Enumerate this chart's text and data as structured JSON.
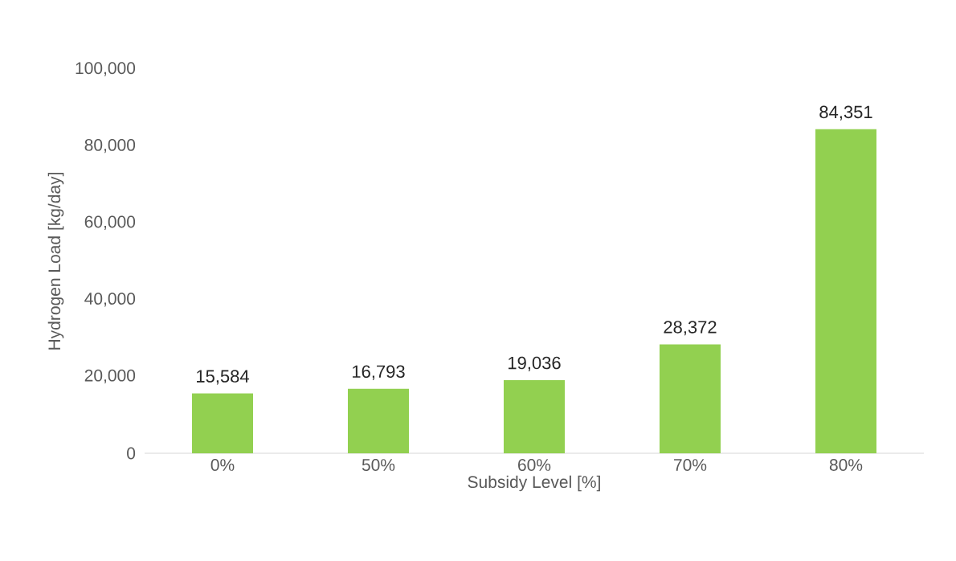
{
  "chart_data": {
    "type": "bar",
    "xlabel": "Subsidy Level [%]",
    "ylabel": "Hydrogen Load [kg/day]",
    "categories": [
      "0%",
      "50%",
      "60%",
      "70%",
      "80%"
    ],
    "values": [
      15584,
      16793,
      19036,
      28372,
      84351
    ],
    "value_labels": [
      "15,584",
      "16,793",
      "19,036",
      "28,372",
      "84,351"
    ],
    "color": "#92d050",
    "ylim": [
      0,
      100000
    ],
    "yticks": [
      {
        "value": 0,
        "label": "0"
      },
      {
        "value": 20000,
        "label": "20,000"
      },
      {
        "value": 40000,
        "label": "40,000"
      },
      {
        "value": 60000,
        "label": "60,000"
      },
      {
        "value": 80000,
        "label": "80,000"
      },
      {
        "value": 100000,
        "label": "100,000"
      }
    ],
    "grid": false
  }
}
